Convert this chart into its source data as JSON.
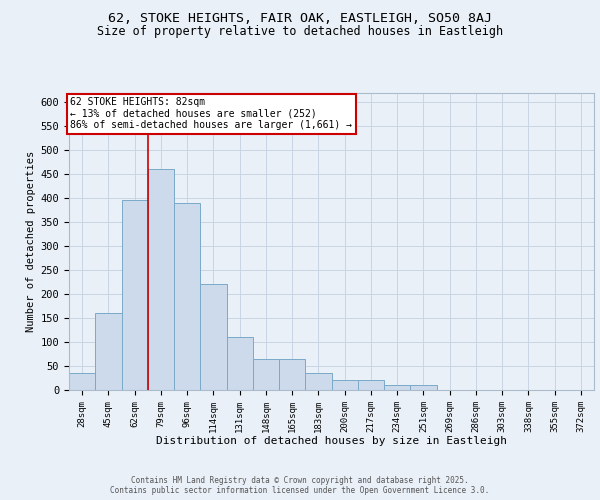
{
  "title_line1": "62, STOKE HEIGHTS, FAIR OAK, EASTLEIGH, SO50 8AJ",
  "title_line2": "Size of property relative to detached houses in Eastleigh",
  "xlabel": "Distribution of detached houses by size in Eastleigh",
  "ylabel": "Number of detached properties",
  "bar_labels": [
    "28sqm",
    "45sqm",
    "62sqm",
    "79sqm",
    "96sqm",
    "114sqm",
    "131sqm",
    "148sqm",
    "165sqm",
    "183sqm",
    "200sqm",
    "217sqm",
    "234sqm",
    "251sqm",
    "269sqm",
    "286sqm",
    "303sqm",
    "338sqm",
    "355sqm",
    "372sqm"
  ],
  "bar_values": [
    35,
    160,
    395,
    460,
    390,
    220,
    110,
    65,
    65,
    35,
    20,
    20,
    10,
    10,
    0,
    0,
    0,
    0,
    0,
    0
  ],
  "bar_color": "#ccdaeb",
  "bar_edge_color": "#7aaac8",
  "grid_color": "#c8d4e4",
  "background_color": "#eaf0f8",
  "vline_x": 3,
  "vline_color": "#cc0000",
  "annotation_text": "62 STOKE HEIGHTS: 82sqm\n← 13% of detached houses are smaller (252)\n86% of semi-detached houses are larger (1,661) →",
  "annotation_box_color": "#ffffff",
  "annotation_box_edge": "#cc0000",
  "footer_text": "Contains HM Land Registry data © Crown copyright and database right 2025.\nContains public sector information licensed under the Open Government Licence 3.0.",
  "ylim": [
    0,
    620
  ],
  "yticks": [
    0,
    50,
    100,
    150,
    200,
    250,
    300,
    350,
    400,
    450,
    500,
    550,
    600
  ]
}
